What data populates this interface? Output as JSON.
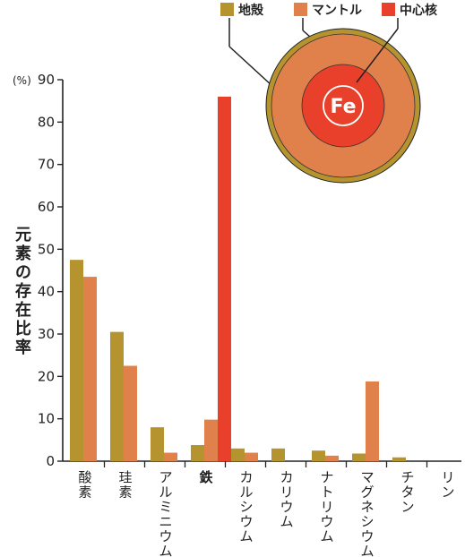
{
  "colors": {
    "crust": "#B59430",
    "mantle": "#E0814C",
    "core": "#E8402B",
    "highlight": "#E23A2A",
    "axis": "#222222"
  },
  "diagram": {
    "core_label": "Fe"
  },
  "chart_data": {
    "type": "bar",
    "ylabel": "元素の存在比率",
    "unit": "(%)",
    "ylim": [
      0,
      90
    ],
    "yticks": [
      0,
      10,
      20,
      30,
      40,
      50,
      60,
      70,
      80,
      90
    ],
    "legend_position": "top-right",
    "highlight_category": "鉄",
    "categories": [
      "酸素",
      "珪素",
      "アルミニウム",
      "鉄",
      "カルシウム",
      "カリウム",
      "ナトリウム",
      "マグネシウム",
      "チタン",
      "リン"
    ],
    "series": [
      {
        "name": "地殻",
        "color": "#B59430",
        "values": [
          47.5,
          30.5,
          8,
          3.8,
          3,
          3,
          2.5,
          1.8,
          0.9,
          0
        ]
      },
      {
        "name": "マントル",
        "color": "#E0814C",
        "values": [
          43.5,
          22.5,
          2,
          9.8,
          2,
          0,
          1.3,
          18.8,
          0,
          0
        ]
      },
      {
        "name": "中心核",
        "color": "#E8402B",
        "values": [
          null,
          null,
          null,
          86,
          null,
          null,
          null,
          null,
          null,
          null
        ]
      }
    ]
  }
}
